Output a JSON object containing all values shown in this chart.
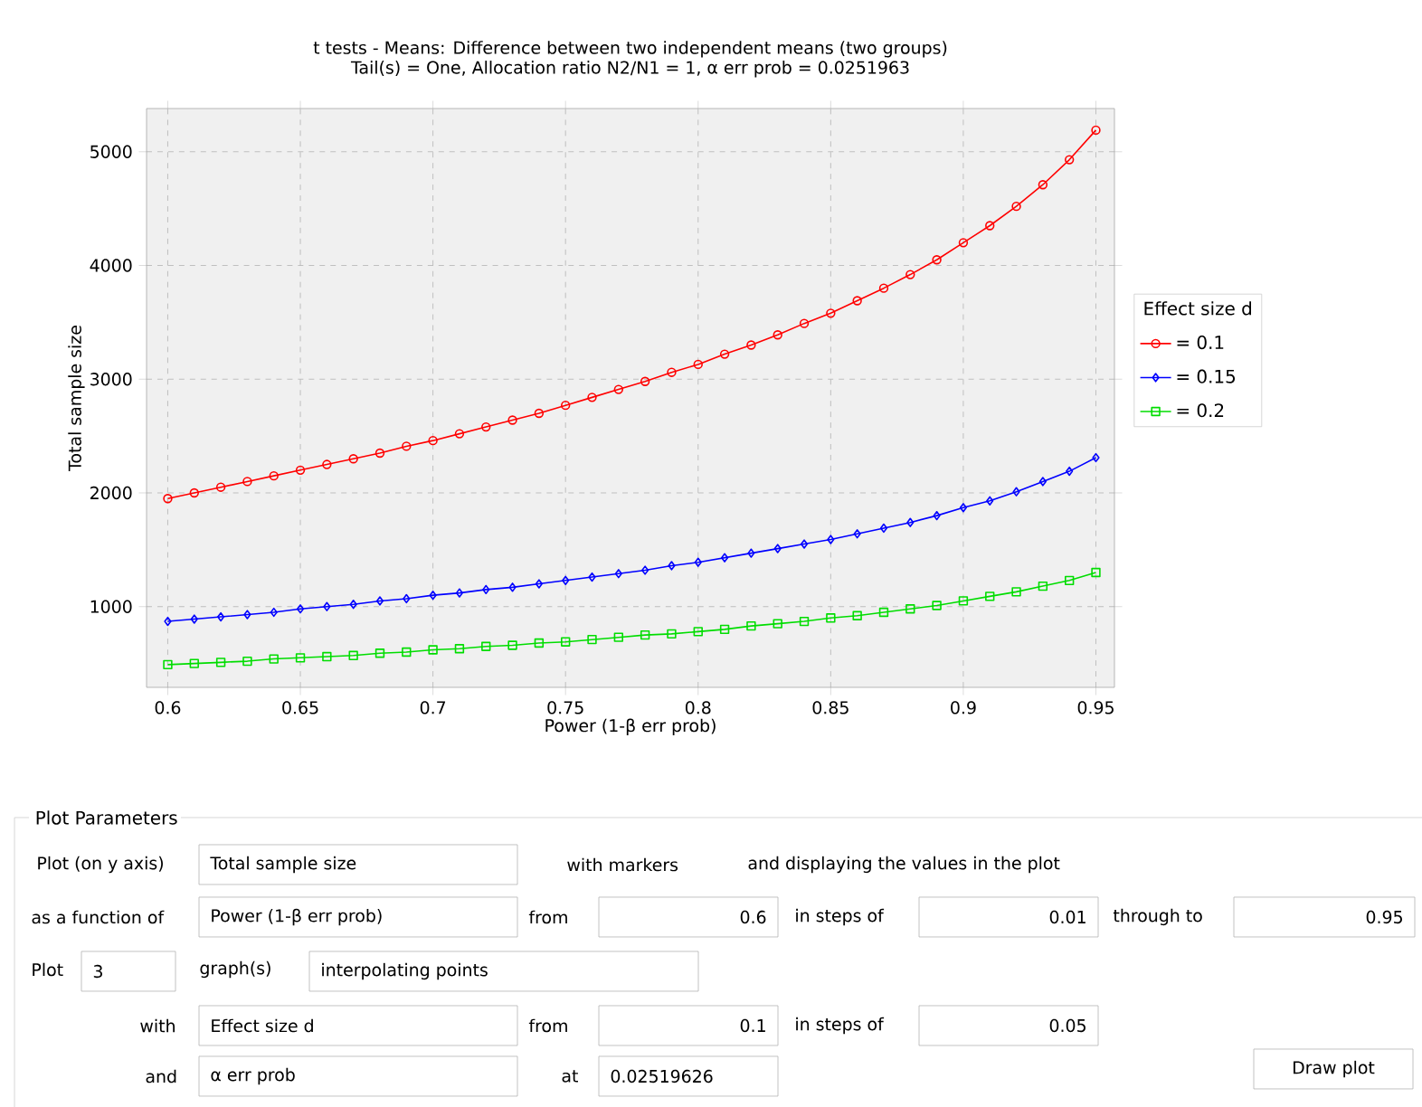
{
  "chart_data": [
    {
      "type": "line",
      "title": "t tests - Means: Difference between two independent means (two groups)",
      "subtitle": "Tail(s) = One, Allocation ratio N2/N1 = 1, α err prob = 0.0251963",
      "xlabel": "Power (1-β err prob)",
      "ylabel": "Total sample size",
      "legend_title": "Effect size d",
      "legend": "right",
      "grid": true,
      "x": [
        0.6,
        0.61,
        0.62,
        0.63,
        0.64,
        0.65,
        0.66,
        0.67,
        0.68,
        0.69,
        0.7,
        0.71,
        0.72,
        0.73,
        0.74,
        0.75,
        0.76,
        0.77,
        0.78,
        0.79,
        0.8,
        0.81,
        0.82,
        0.83,
        0.84,
        0.85,
        0.86,
        0.87,
        0.88,
        0.89,
        0.9,
        0.91,
        0.92,
        0.93,
        0.94,
        0.95
      ],
      "xlim": [
        0.592,
        0.957
      ],
      "ylim": [
        290,
        5380
      ],
      "xticks": [
        0.6,
        0.65,
        0.7,
        0.75,
        0.8,
        0.85,
        0.9,
        0.95
      ],
      "yticks": [
        1000,
        2000,
        3000,
        4000,
        5000
      ],
      "series": [
        {
          "name": "= 0.1",
          "color": "#ff0000",
          "marker": "circle",
          "values": [
            1950,
            2000,
            2050,
            2100,
            2150,
            2200,
            2250,
            2300,
            2350,
            2410,
            2460,
            2520,
            2580,
            2640,
            2700,
            2770,
            2840,
            2910,
            2980,
            3060,
            3130,
            3220,
            3300,
            3390,
            3490,
            3580,
            3690,
            3800,
            3920,
            4050,
            4200,
            4350,
            4520,
            4710,
            4930,
            5190
          ]
        },
        {
          "name": "= 0.15",
          "color": "#0000ff",
          "marker": "diamond",
          "values": [
            870,
            890,
            910,
            930,
            950,
            980,
            1000,
            1020,
            1050,
            1070,
            1100,
            1120,
            1150,
            1170,
            1200,
            1230,
            1260,
            1290,
            1320,
            1360,
            1390,
            1430,
            1470,
            1510,
            1550,
            1590,
            1640,
            1690,
            1740,
            1800,
            1870,
            1930,
            2010,
            2100,
            2190,
            2310
          ]
        },
        {
          "name": "= 0.2",
          "color": "#00dd00",
          "marker": "square",
          "values": [
            490,
            500,
            510,
            520,
            540,
            550,
            560,
            570,
            590,
            600,
            620,
            630,
            650,
            660,
            680,
            690,
            710,
            730,
            750,
            760,
            780,
            800,
            830,
            850,
            870,
            900,
            920,
            950,
            980,
            1010,
            1050,
            1090,
            1130,
            1180,
            1230,
            1300
          ]
        }
      ]
    },
    {
      "type": "other",
      "title": "Plot Parameters",
      "annotations": [
        "Plot (on y axis)",
        "Total sample size",
        "with markers",
        "and displaying the values in the plot",
        "as a function of",
        "Power (1-β err prob)",
        "from",
        "0.6",
        "in steps of",
        "0.01",
        "through to",
        "0.95",
        "Plot",
        "3",
        "graph(s)",
        "interpolating points",
        "with",
        "Effect size d",
        "from",
        "0.1",
        "in steps of",
        "0.05",
        "and",
        "α err prob",
        "at",
        "0.02519626",
        "Draw plot"
      ]
    }
  ]
}
